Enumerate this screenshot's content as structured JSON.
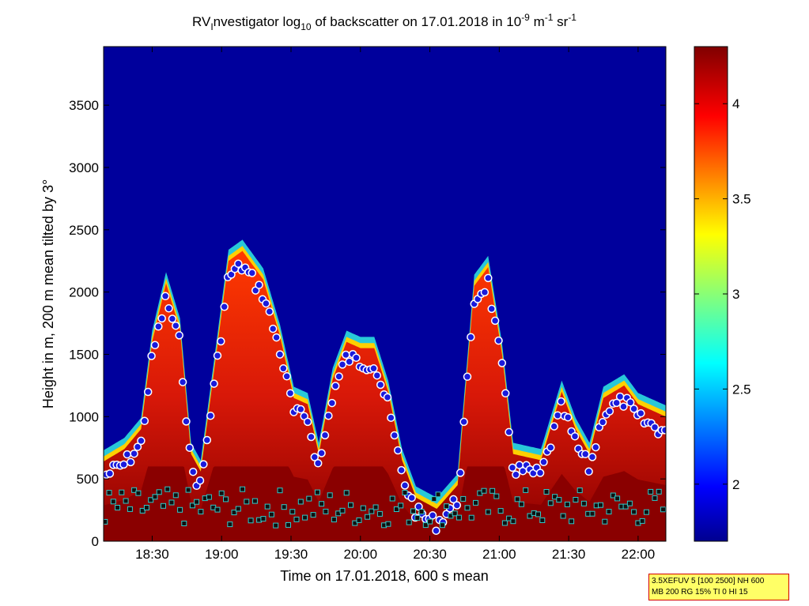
{
  "chart_data": {
    "type": "heatmap",
    "title": {
      "prefix": "RV",
      "sub1": "I",
      "part2": "nvestigator log",
      "sub2": "10",
      "part3": " of backscatter on 17.01.2018 in 10",
      "sup1": "-9",
      "part4": " m",
      "sup2": "-1",
      "part5": " sr",
      "sup3": "-1"
    },
    "xlabel": "Time on 17.01.2018, 600 s mean",
    "ylabel": "Height in m, 200 m mean tilted by 3°",
    "x_range_hours": [
      18.15,
      22.2
    ],
    "ylim": [
      0,
      3970
    ],
    "x_ticks": [
      {
        "value": 18.5,
        "label": "18:30"
      },
      {
        "value": 19.0,
        "label": "19:00"
      },
      {
        "value": 19.5,
        "label": "19:30"
      },
      {
        "value": 20.0,
        "label": "20:00"
      },
      {
        "value": 20.5,
        "label": "20:30"
      },
      {
        "value": 21.0,
        "label": "21:00"
      },
      {
        "value": 21.5,
        "label": "21:30"
      },
      {
        "value": 22.0,
        "label": "22:00"
      }
    ],
    "y_ticks": [
      0,
      500,
      1000,
      1500,
      2000,
      2500,
      3000,
      3500
    ],
    "colorbar": {
      "range": [
        1.7,
        4.3
      ],
      "ticks": [
        {
          "value": 2,
          "label": "2"
        },
        {
          "value": 2.5,
          "label": "2.5"
        },
        {
          "value": 3,
          "label": "3"
        },
        {
          "value": 3.5,
          "label": "3.5"
        },
        {
          "value": 4,
          "label": "4"
        }
      ],
      "colormap": "jet",
      "background_color": "#00009c"
    },
    "cloud_top_profile": [
      {
        "x": 18.15,
        "top": 640
      },
      {
        "x": 18.3,
        "top": 740
      },
      {
        "x": 18.42,
        "top": 900
      },
      {
        "x": 18.5,
        "top": 1600
      },
      {
        "x": 18.6,
        "top": 2070
      },
      {
        "x": 18.7,
        "top": 1700
      },
      {
        "x": 18.78,
        "top": 700
      },
      {
        "x": 18.85,
        "top": 560
      },
      {
        "x": 18.95,
        "top": 1400
      },
      {
        "x": 19.05,
        "top": 2250
      },
      {
        "x": 19.15,
        "top": 2330
      },
      {
        "x": 19.3,
        "top": 2100
      },
      {
        "x": 19.42,
        "top": 1650
      },
      {
        "x": 19.52,
        "top": 1150
      },
      {
        "x": 19.62,
        "top": 1100
      },
      {
        "x": 19.7,
        "top": 700
      },
      {
        "x": 19.8,
        "top": 1300
      },
      {
        "x": 19.9,
        "top": 1600
      },
      {
        "x": 20.0,
        "top": 1550
      },
      {
        "x": 20.1,
        "top": 1550
      },
      {
        "x": 20.2,
        "top": 1200
      },
      {
        "x": 20.3,
        "top": 650
      },
      {
        "x": 20.4,
        "top": 350
      },
      {
        "x": 20.55,
        "top": 260
      },
      {
        "x": 20.7,
        "top": 450
      },
      {
        "x": 20.82,
        "top": 2050
      },
      {
        "x": 20.92,
        "top": 2200
      },
      {
        "x": 21.02,
        "top": 1500
      },
      {
        "x": 21.1,
        "top": 700
      },
      {
        "x": 21.3,
        "top": 650
      },
      {
        "x": 21.45,
        "top": 1200
      },
      {
        "x": 21.55,
        "top": 900
      },
      {
        "x": 21.65,
        "top": 700
      },
      {
        "x": 21.75,
        "top": 1150
      },
      {
        "x": 21.9,
        "top": 1250
      },
      {
        "x": 22.0,
        "top": 1100
      },
      {
        "x": 22.2,
        "top": 1000
      }
    ],
    "markers": {
      "cloud_top_points": {
        "color": "#1a1adc",
        "edge": "#ffffff"
      },
      "cloud_base_points": {
        "color": "#101010",
        "edge": "#30c8c8"
      }
    }
  },
  "info_box": {
    "line1": "3.5XEFUV 5 [100 2500] NH 600",
    "line2": "MB 200 RG 15% TI 0 HI 15"
  }
}
